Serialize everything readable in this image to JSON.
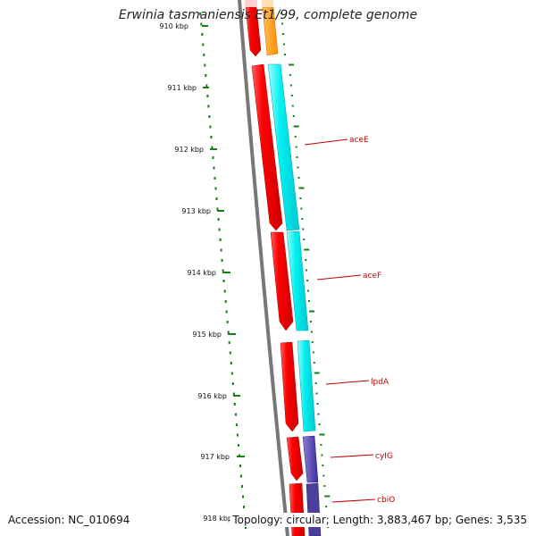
{
  "title": "Erwinia tasmaniensis Et1/99, complete genome",
  "accession": "Accession: NC_010694",
  "topology": "Topology: circular; Length: 3,883,467 bp; Genes: 3,535",
  "ruler": {
    "unit": "kbp",
    "labels": [
      "910 kbp",
      "911 kbp",
      "912 kbp",
      "913 kbp",
      "914 kbp",
      "915 kbp",
      "916 kbp",
      "917 kbp",
      "918 kbp"
    ]
  },
  "genes": [
    "aceE",
    "aceF",
    "lpdA",
    "cyIG",
    "cbiO"
  ],
  "colors": {
    "backbone": "#777777",
    "cds_forward": "#ff0000",
    "cds_alt": "#ff8c00",
    "aceE_track": "#00f0f0",
    "cyIG_track": "#3a2aa0",
    "cbiO_track": "#4a3f9a",
    "gc_ticks": "#138013",
    "label_text": "#c00000"
  }
}
